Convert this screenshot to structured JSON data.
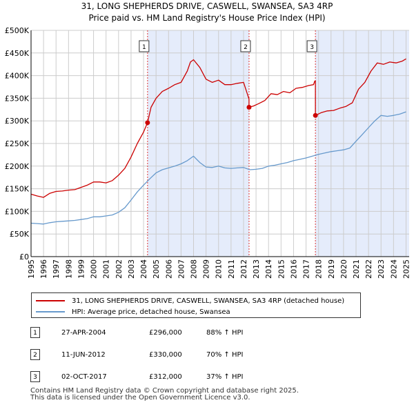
{
  "title_line1": "31, LONG SHEPHERDS DRIVE, CASWELL, SWANSEA, SA3 4RP",
  "title_line2": "Price paid vs. HM Land Registry's House Price Index (HPI)",
  "colors": {
    "property": "#cc0000",
    "hpi": "#6699cc",
    "shade": "#e5ecfb",
    "grid": "#cccccc",
    "marker_line": "#dd3333"
  },
  "chart_data": {
    "type": "line",
    "title": "Price paid vs. HM Land Registry's House Price Index (HPI)",
    "xlabel": "",
    "ylabel": "",
    "xlim": [
      1995.0,
      2025.25
    ],
    "ylim": [
      0,
      500000
    ],
    "grid": true,
    "y_ticks": [
      0,
      50000,
      100000,
      150000,
      200000,
      250000,
      300000,
      350000,
      400000,
      450000,
      500000
    ],
    "y_tick_labels": [
      "£0",
      "£50K",
      "£100K",
      "£150K",
      "£200K",
      "£250K",
      "£300K",
      "£350K",
      "£400K",
      "£450K",
      "£500K"
    ],
    "x_ticks": [
      1995,
      1996,
      1997,
      1998,
      1999,
      2000,
      2001,
      2002,
      2003,
      2004,
      2005,
      2006,
      2007,
      2008,
      2009,
      2010,
      2011,
      2012,
      2013,
      2014,
      2015,
      2016,
      2017,
      2018,
      2019,
      2020,
      2021,
      2022,
      2023,
      2024,
      2025
    ],
    "x_tick_labels": [
      "1995",
      "1996",
      "1997",
      "1998",
      "1999",
      "2000",
      "2001",
      "2002",
      "2003",
      "2004",
      "2005",
      "2006",
      "2007",
      "2008",
      "2009",
      "2010",
      "2011",
      "2012",
      "2013",
      "2014",
      "2015",
      "2016",
      "2017",
      "2018",
      "2019",
      "2020",
      "2021",
      "2022",
      "2023",
      "2024",
      "2025"
    ],
    "shaded_periods": [
      [
        2004.32,
        2012.44
      ],
      [
        2017.75,
        2025.25
      ]
    ],
    "series": [
      {
        "name": "31, LONG SHEPHERDS DRIVE, CASWELL, SWANSEA, SA3 4RP (detached house)",
        "color": "#cc0000",
        "x": [
          1995.0,
          1995.5,
          1996.0,
          1996.5,
          1997.0,
          1997.5,
          1998.0,
          1998.5,
          1999.0,
          1999.5,
          2000.0,
          2000.5,
          2001.0,
          2001.5,
          2002.0,
          2002.5,
          2003.0,
          2003.5,
          2004.0,
          2004.32,
          2004.6,
          2005.0,
          2005.5,
          2006.0,
          2006.5,
          2007.0,
          2007.5,
          2007.75,
          2008.0,
          2008.5,
          2009.0,
          2009.5,
          2010.0,
          2010.5,
          2011.0,
          2011.5,
          2012.0,
          2012.44,
          2012.44,
          2012.8,
          2013.2,
          2013.7,
          2014.2,
          2014.7,
          2015.2,
          2015.7,
          2016.2,
          2016.7,
          2017.2,
          2017.6,
          2017.7,
          2017.75,
          2017.75,
          2018.2,
          2018.7,
          2019.2,
          2019.7,
          2020.2,
          2020.7,
          2021.2,
          2021.7,
          2022.2,
          2022.7,
          2023.2,
          2023.7,
          2024.2,
          2024.7,
          2025.0
        ],
        "values": [
          138000,
          134000,
          131000,
          140000,
          144000,
          145000,
          147000,
          148000,
          153000,
          158000,
          165000,
          165000,
          163000,
          168000,
          180000,
          195000,
          220000,
          250000,
          275000,
          296000,
          330000,
          350000,
          365000,
          372000,
          380000,
          385000,
          410000,
          430000,
          435000,
          418000,
          392000,
          385000,
          390000,
          380000,
          380000,
          383000,
          385000,
          348000,
          330000,
          333000,
          338000,
          345000,
          360000,
          358000,
          365000,
          362000,
          372000,
          374000,
          378000,
          380000,
          388000,
          388000,
          312000,
          318000,
          322000,
          323000,
          328000,
          332000,
          340000,
          370000,
          385000,
          410000,
          428000,
          425000,
          430000,
          428000,
          432000,
          437000
        ]
      },
      {
        "name": "HPI: Average price, detached house, Swansea",
        "color": "#6699cc",
        "x": [
          1995.0,
          1995.5,
          1996.0,
          1996.5,
          1997.0,
          1997.5,
          1998.0,
          1998.5,
          1999.0,
          1999.5,
          2000.0,
          2000.5,
          2001.0,
          2001.5,
          2002.0,
          2002.5,
          2003.0,
          2003.5,
          2004.0,
          2004.5,
          2005.0,
          2005.5,
          2006.0,
          2006.5,
          2007.0,
          2007.5,
          2008.0,
          2008.5,
          2009.0,
          2009.5,
          2010.0,
          2010.5,
          2011.0,
          2011.5,
          2012.0,
          2012.5,
          2013.0,
          2013.5,
          2014.0,
          2014.5,
          2015.0,
          2015.5,
          2016.0,
          2016.5,
          2017.0,
          2017.5,
          2018.0,
          2018.5,
          2019.0,
          2019.5,
          2020.0,
          2020.5,
          2021.0,
          2021.5,
          2022.0,
          2022.5,
          2023.0,
          2023.5,
          2024.0,
          2024.5,
          2025.0
        ],
        "values": [
          74000,
          73000,
          72000,
          75000,
          77000,
          78000,
          79000,
          80000,
          82000,
          84000,
          88000,
          88000,
          90000,
          92000,
          98000,
          108000,
          125000,
          143000,
          158000,
          172000,
          185000,
          192000,
          196000,
          200000,
          205000,
          212000,
          222000,
          208000,
          198000,
          197000,
          200000,
          196000,
          195000,
          196000,
          197000,
          192000,
          193000,
          195000,
          200000,
          202000,
          205000,
          208000,
          212000,
          215000,
          218000,
          222000,
          226000,
          229000,
          232000,
          234000,
          236000,
          240000,
          255000,
          270000,
          285000,
          300000,
          312000,
          310000,
          312000,
          315000,
          320000
        ]
      }
    ],
    "sales": [
      {
        "label": "1",
        "x": 2004.32,
        "price": 296000
      },
      {
        "label": "2",
        "x": 2012.44,
        "price": 330000
      },
      {
        "label": "3",
        "x": 2017.75,
        "price": 312000
      }
    ]
  },
  "legend": {
    "property_label": "31, LONG SHEPHERDS DRIVE, CASWELL, SWANSEA, SA3 4RP (detached house)",
    "hpi_label": "HPI: Average price, detached house, Swansea"
  },
  "sales_table": [
    {
      "num": "1",
      "date": "27-APR-2004",
      "price": "£296,000",
      "hpi": "88% ↑ HPI"
    },
    {
      "num": "2",
      "date": "11-JUN-2012",
      "price": "£330,000",
      "hpi": "70% ↑ HPI"
    },
    {
      "num": "3",
      "date": "02-OCT-2017",
      "price": "£312,000",
      "hpi": "37% ↑ HPI"
    }
  ],
  "footer_line1": "Contains HM Land Registry data © Crown copyright and database right 2025.",
  "footer_line2": "This data is licensed under the Open Government Licence v3.0."
}
